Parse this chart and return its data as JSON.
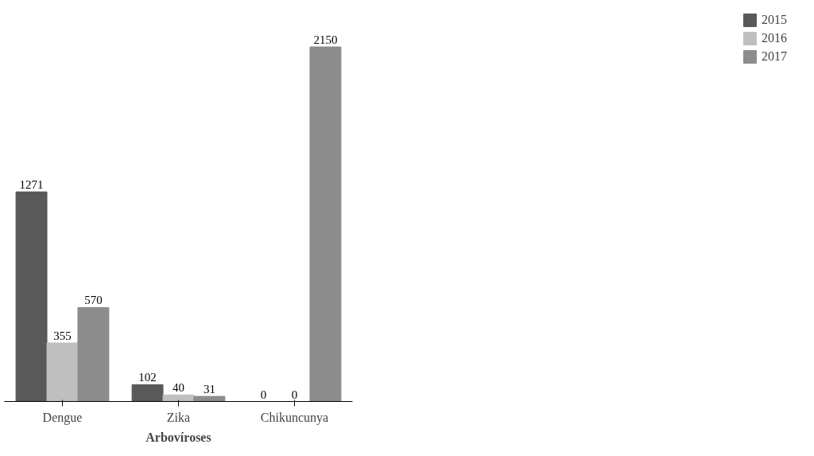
{
  "chart_data": {
    "type": "bar",
    "xlabel": "Arbovíroses",
    "categories": [
      "Dengue",
      "Zika",
      "Chikuncunya"
    ],
    "series": [
      {
        "name": "2015",
        "color": "#595959",
        "values": [
          1271,
          102,
          0
        ]
      },
      {
        "name": "2016",
        "color": "#bfbfbf",
        "values": [
          355,
          40,
          0
        ]
      },
      {
        "name": "2017",
        "color": "#8c8c8c",
        "values": [
          570,
          31,
          2150
        ]
      }
    ],
    "data_labels": true,
    "legend": "right",
    "grid": false
  }
}
